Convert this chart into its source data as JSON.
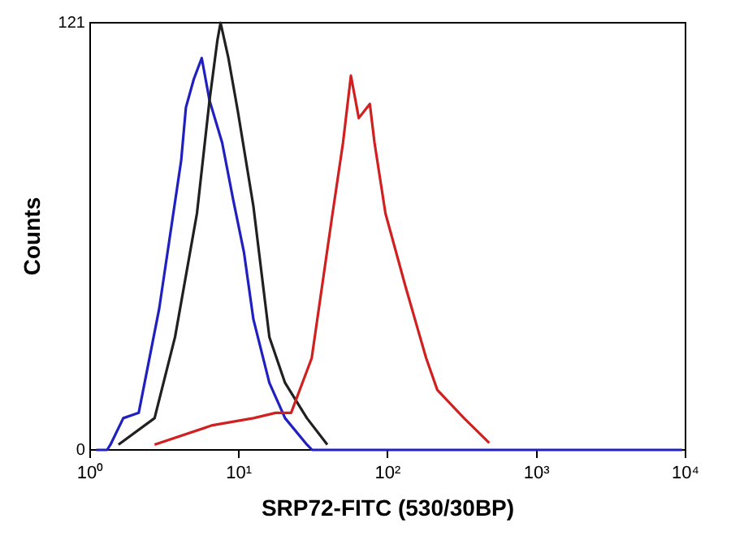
{
  "chart_data": {
    "type": "line",
    "xlabel": "SRP72-FITC (530/30BP)",
    "ylabel": "Counts",
    "log": "x",
    "grid": false,
    "legend": false,
    "marker": "none",
    "line_style": "solid",
    "xlim": [
      1,
      10000
    ],
    "xticks": [
      {
        "value": 1,
        "label": "10⁰"
      },
      {
        "value": 10,
        "label": "10¹"
      },
      {
        "value": 100,
        "label": "10²"
      },
      {
        "value": 1000,
        "label": "10³"
      },
      {
        "value": 10000,
        "label": "10⁴"
      }
    ],
    "ylim": [
      0,
      121
    ],
    "yticks": [
      0,
      121
    ],
    "series": [
      {
        "color": "#d02020",
        "x": [
          2.71,
          6.65,
          12.5,
          17.6,
          22.4,
          30.8,
          42.2,
          50.0,
          56.5,
          63.8,
          75.7,
          81.4,
          96.4,
          132,
          181,
          215,
          325,
          480
        ],
        "values": [
          1.5,
          7,
          9,
          10.5,
          10.5,
          26,
          66,
          87,
          106,
          94,
          98,
          87,
          67,
          46,
          26,
          17,
          9,
          2
        ]
      },
      {
        "color": "#202020",
        "x": [
          1.55,
          2.71,
          3.72,
          5.22,
          6.34,
          7.16,
          7.52,
          8.49,
          9.82,
          12.5,
          16.0,
          20.4,
          28.6,
          39.2
        ],
        "values": [
          1.5,
          9,
          32,
          67,
          99,
          116,
          121,
          111,
          96,
          69,
          32,
          19,
          9,
          1.5
        ]
      },
      {
        "color": "#2020c0",
        "x": [
          1.1,
          1.3,
          1.37,
          1.67,
          2.12,
          2.91,
          4.09,
          4.4,
          4.97,
          5.62,
          6.34,
          7.71,
          9.13,
          10.8,
          12.5,
          16.0,
          20.4,
          28.6,
          31,
          9500
        ],
        "values": [
          0,
          0,
          1.5,
          9,
          10.5,
          40,
          82,
          97,
          105,
          111,
          99,
          87,
          71,
          56,
          37,
          19,
          9,
          1.5,
          0,
          0
        ]
      }
    ]
  }
}
